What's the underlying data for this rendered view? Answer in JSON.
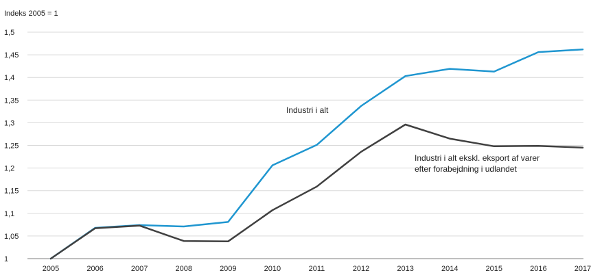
{
  "chart_data": {
    "type": "line",
    "unit_label": "Indeks 2005 = 1",
    "categories": [
      "2005",
      "2006",
      "2007",
      "2008",
      "2009",
      "2010",
      "2011",
      "2012",
      "2013",
      "2014",
      "2015",
      "2016",
      "2017"
    ],
    "ylim": [
      1,
      1.5
    ],
    "yticks": [
      1,
      1.05,
      1.1,
      1.15,
      1.2,
      1.25,
      1.3,
      1.35,
      1.4,
      1.45,
      1.5
    ],
    "ytick_labels": [
      "1",
      "1,05",
      "1,1",
      "1,15",
      "1,2",
      "1,25",
      "1,3",
      "1,35",
      "1,4",
      "1,45",
      "1,5"
    ],
    "grid": true,
    "series": [
      {
        "name": "Industri i alt",
        "color": "#1f96d0",
        "values": [
          1.0,
          1.068,
          1.074,
          1.071,
          1.081,
          1.206,
          1.251,
          1.337,
          1.403,
          1.419,
          1.413,
          1.456,
          1.462
        ]
      },
      {
        "name_lines": [
          "Industri i alt ekskl. eksport af varer",
          "efter forabejdning i udlandet"
        ],
        "color": "#404040",
        "values": [
          1.0,
          1.067,
          1.073,
          1.039,
          1.038,
          1.107,
          1.159,
          1.236,
          1.296,
          1.265,
          1.248,
          1.249,
          1.245
        ]
      }
    ]
  }
}
